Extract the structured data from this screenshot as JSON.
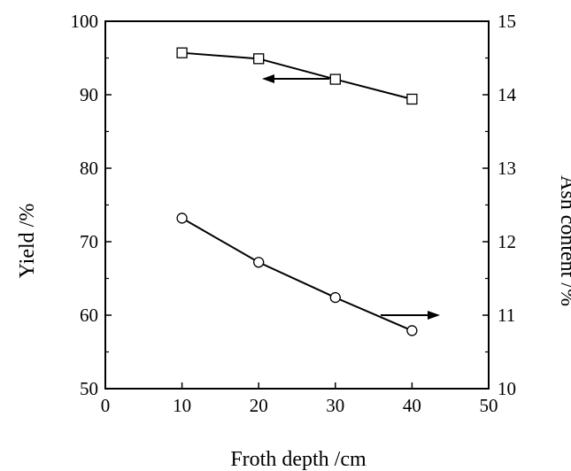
{
  "chart_data": {
    "type": "line",
    "xlabel": "Froth depth /cm",
    "ylabel": "Yield /%",
    "y2label": "Ash content /%",
    "xlim": [
      0,
      50
    ],
    "ylim": [
      50,
      100
    ],
    "y2lim": [
      10,
      15
    ],
    "xticks": [
      "0",
      "10",
      "20",
      "30",
      "40",
      "50"
    ],
    "yticks": [
      "50",
      "60",
      "70",
      "80",
      "90",
      "100"
    ],
    "y2ticks": [
      "10",
      "11",
      "12",
      "13",
      "14",
      "15"
    ],
    "grid": false,
    "series": [
      {
        "axis": "left",
        "marker": "square",
        "x": [
          10,
          20,
          30,
          40
        ],
        "y": [
          95.7,
          94.9,
          92.1,
          89.4
        ]
      },
      {
        "axis": "right",
        "marker": "circle",
        "x": [
          10,
          20,
          30,
          40
        ],
        "y": [
          12.32,
          11.72,
          11.24,
          10.79
        ]
      }
    ],
    "annotations": [
      {
        "type": "arrow",
        "direction": "left",
        "points_to": "left axis"
      },
      {
        "type": "arrow",
        "direction": "right",
        "points_to": "right axis"
      }
    ]
  }
}
